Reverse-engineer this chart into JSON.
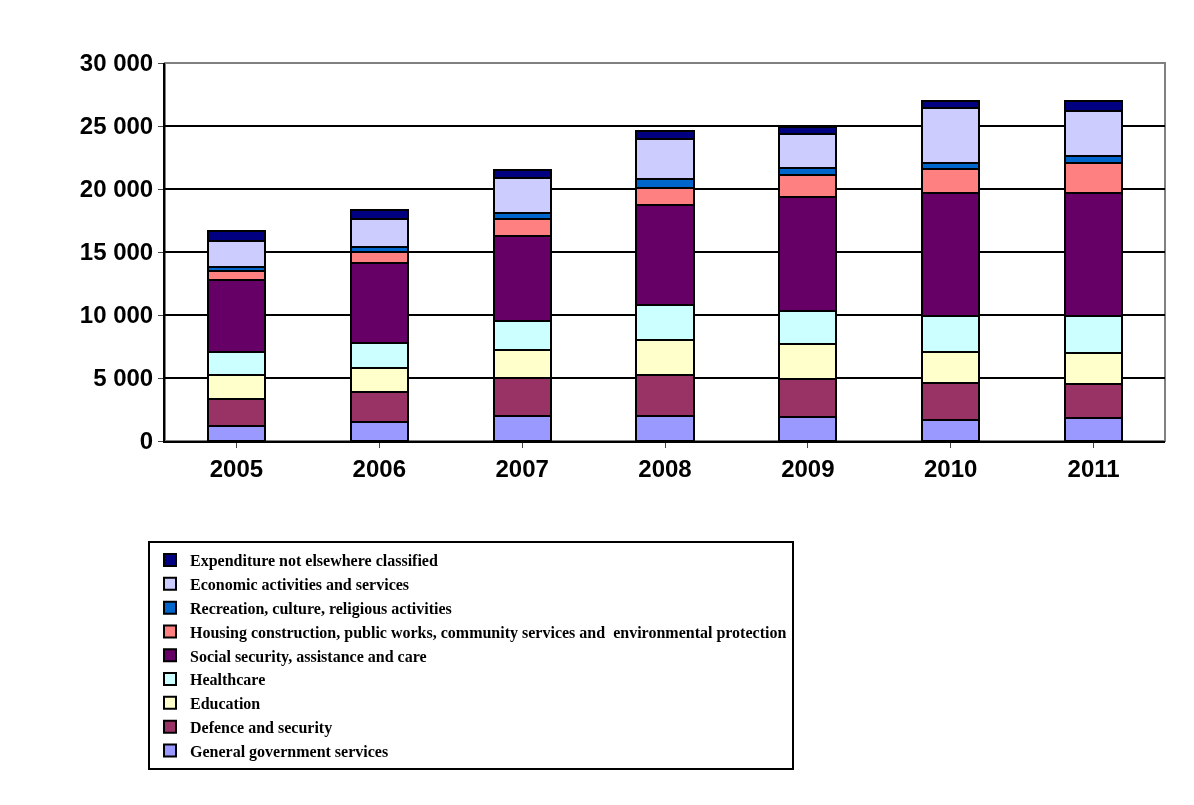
{
  "chart_data": {
    "type": "bar",
    "stacked": true,
    "categories": [
      "2005",
      "2006",
      "2007",
      "2008",
      "2009",
      "2010",
      "2011"
    ],
    "series": [
      {
        "name": "General government services",
        "color": "#9999ff",
        "values": [
          1200,
          1500,
          2000,
          2000,
          1900,
          1700,
          1800
        ]
      },
      {
        "name": "Defence and security",
        "color": "#993366",
        "values": [
          2100,
          2400,
          3000,
          3200,
          3000,
          2900,
          2700
        ]
      },
      {
        "name": "Education",
        "color": "#ffffcc",
        "values": [
          1900,
          1900,
          2200,
          2800,
          2800,
          2500,
          2500
        ]
      },
      {
        "name": "Healthcare",
        "color": "#ccffff",
        "values": [
          1900,
          2000,
          2300,
          2800,
          2600,
          2800,
          2900
        ]
      },
      {
        "name": "Social security, assistance and care",
        "color": "#660066",
        "values": [
          5700,
          6300,
          6800,
          7900,
          9100,
          9800,
          9800
        ]
      },
      {
        "name": "Housing construction, public works, community services and  environmental protection",
        "color": "#ff8080",
        "values": [
          700,
          900,
          1300,
          1400,
          1700,
          1900,
          2400
        ]
      },
      {
        "name": "Recreation, culture, religious activities",
        "color": "#0066cc",
        "values": [
          300,
          400,
          500,
          700,
          600,
          500,
          500
        ]
      },
      {
        "name": "Economic activities and services",
        "color": "#ccccff",
        "values": [
          2100,
          2200,
          2800,
          3200,
          2700,
          4300,
          3600
        ]
      },
      {
        "name": "Expenditure not elsewhere classified",
        "color": "#000080",
        "values": [
          800,
          700,
          600,
          600,
          500,
          600,
          800
        ]
      }
    ],
    "ylim": [
      0,
      30000
    ],
    "yticks": [
      0,
      {
        "value": 5000,
        "label": "5 000"
      },
      {
        "value": 10000,
        "label": "10 000"
      },
      {
        "value": 15000,
        "label": "15 000"
      },
      {
        "value": 20000,
        "label": "20 000"
      },
      {
        "value": 25000,
        "label": "25 000"
      },
      {
        "value": 30000,
        "label": "30 000"
      }
    ],
    "grid": "y",
    "legend": "bottom"
  }
}
